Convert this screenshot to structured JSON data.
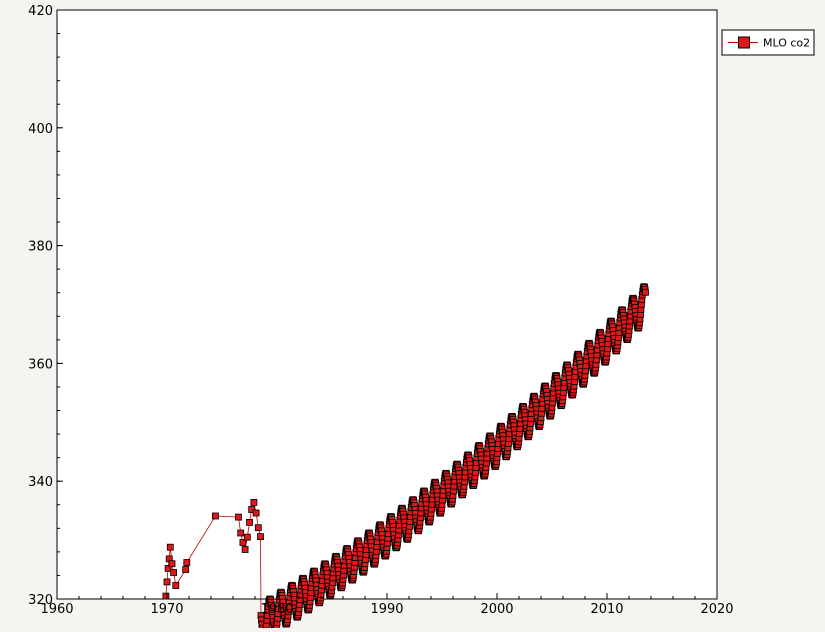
{
  "chart_data": {
    "type": "scatter",
    "xlim": [
      1960,
      2020
    ],
    "ylim": [
      320,
      420
    ],
    "x_ticks": [
      1960,
      1970,
      1980,
      1990,
      2000,
      2010,
      2020
    ],
    "y_ticks": [
      320,
      340,
      360,
      380,
      400,
      420
    ],
    "grid": false,
    "legend_position": "top-right-outside",
    "series": [
      {
        "name": "MLO co2",
        "marker": "square",
        "line": true,
        "color": "#e01818",
        "edge_color": "#000000",
        "points": [
          [
            1969.9,
            320.5
          ],
          [
            1970.0,
            322.9
          ],
          [
            1970.1,
            325.2
          ],
          [
            1970.2,
            326.8
          ],
          [
            1970.3,
            328.8
          ],
          [
            1970.45,
            326.0
          ],
          [
            1970.6,
            324.5
          ],
          [
            1970.8,
            322.3
          ],
          [
            1971.7,
            325.0
          ],
          [
            1971.8,
            326.2
          ],
          [
            1974.4,
            334.1
          ],
          [
            1976.5,
            333.9
          ],
          [
            1976.7,
            331.2
          ],
          [
            1976.9,
            329.6
          ],
          [
            1977.1,
            328.4
          ],
          [
            1977.3,
            330.5
          ],
          [
            1977.5,
            333.0
          ],
          [
            1977.7,
            335.2
          ],
          [
            1977.9,
            336.4
          ],
          [
            1978.1,
            334.6
          ],
          [
            1978.3,
            332.1
          ],
          [
            1978.5,
            330.6
          ]
        ]
      }
    ],
    "trend": {
      "start_year": 1978.5,
      "end_year": 2013.5,
      "formula": "315.5 + 1.1*t + 0.0125*t^2 + 3*sin(2*pi*(year-0.1))",
      "samples_per_year": 24
    }
  }
}
